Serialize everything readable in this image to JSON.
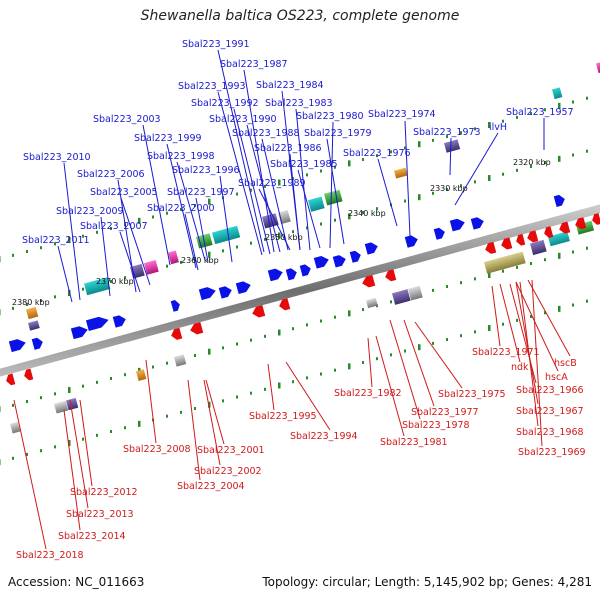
{
  "title": "Shewanella baltica OS223, complete genome",
  "footer": {
    "accession": "Accession: NC_011663",
    "summary": "Topology: circular; Length: 5,145,902 bp; Genes: 4,281"
  },
  "colors": {
    "forward_gene": "#0a12e6",
    "reverse_gene": "#e60a0a",
    "forward_label": "#1a1ad0",
    "reverse_label": "#d01a1a",
    "axis_ticks": "#2a8a2a",
    "backbone": "#888888"
  },
  "scale_labels": [
    "2320 kbp",
    "2330 kbp",
    "2340 kbp",
    "2350 kbp",
    "2360 kbp",
    "2370 kbp",
    "2380 kbp"
  ],
  "forward_gene_labels": [
    "Sbal223_1991",
    "Sbal223_1987",
    "Sbal223_1993",
    "Sbal223_1984",
    "Sbal223_1992",
    "Sbal223_1983",
    "Sbal223_1990",
    "Sbal223_1980",
    "Sbal223_1974",
    "Sbal223_1957",
    "Sbal223_2003",
    "Sbal223_1988",
    "Sbal223_1979",
    "Sbal223_1973",
    "ilvH",
    "Sbal223_1999",
    "Sbal223_1986",
    "Sbal223_2010",
    "Sbal223_1998",
    "Sbal223_1976",
    "Sbal223_1985",
    "Sbal223_2006",
    "Sbal223_1996",
    "Sbal223_1989",
    "Sbal223_2005",
    "Sbal223_1997",
    "Sbal223_2009",
    "Sbal223_2000",
    "Sbal223_2007",
    "Sbal223_2011"
  ],
  "reverse_gene_labels": [
    "Sbal223_1971",
    "ndk",
    "hscB",
    "hscA",
    "Sbal223_1982",
    "Sbal223_1966",
    "Sbal223_1975",
    "Sbal223_1977",
    "Sbal223_1967",
    "Sbal223_1995",
    "Sbal223_1978",
    "Sbal223_1994",
    "Sbal223_1968",
    "Sbal223_1981",
    "Sbal223_2008",
    "Sbal223_2001",
    "Sbal223_1969",
    "Sbal223_2002",
    "Sbal223_2004",
    "Sbal223_2012",
    "Sbal223_2013",
    "Sbal223_2014",
    "Sbal223_2018"
  ]
}
